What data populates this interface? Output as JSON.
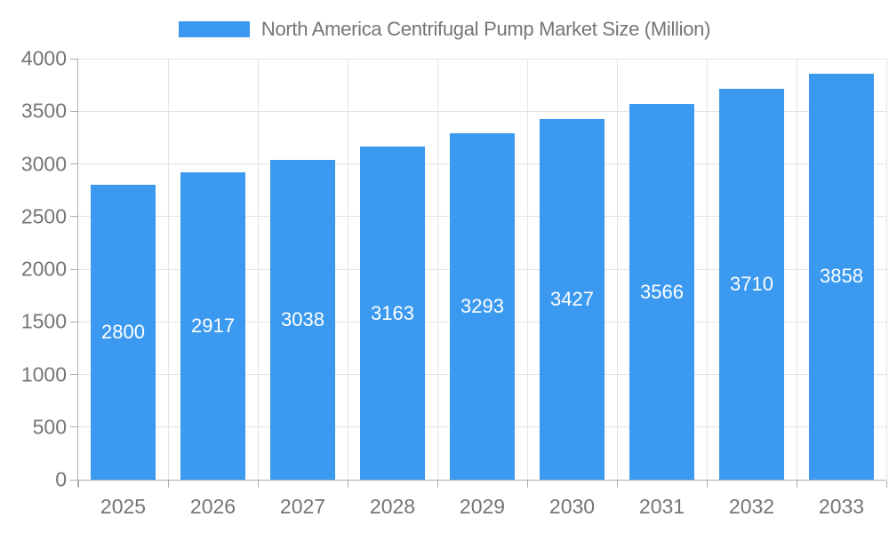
{
  "legend": {
    "label": "North America Centrifugal Pump Market Size (Million)"
  },
  "colors": {
    "bar": "#3B9AF0",
    "legend_text": "#757575",
    "axis_label": "#757575",
    "grid_line": "#E4E4E4",
    "axis_line": "#ADADAD",
    "value_label": "#FFFFFF",
    "background": "#FFFFFF"
  },
  "chart_data": {
    "type": "bar",
    "title": "North America Centrifugal Pump Market Size (Million)",
    "categories": [
      "2025",
      "2026",
      "2027",
      "2028",
      "2029",
      "2030",
      "2031",
      "2032",
      "2033"
    ],
    "values": [
      2800,
      2917,
      3038,
      3163,
      3293,
      3427,
      3566,
      3710,
      3858
    ],
    "xlabel": "",
    "ylabel": "",
    "ylim": [
      0,
      4000
    ],
    "ytick_step": 500,
    "ytick_labels": [
      "0",
      "500",
      "1000",
      "1500",
      "2000",
      "2500",
      "3000",
      "3500",
      "4000"
    ],
    "grid": true,
    "legend_position": "top-center",
    "value_label_position": "inside-center"
  }
}
